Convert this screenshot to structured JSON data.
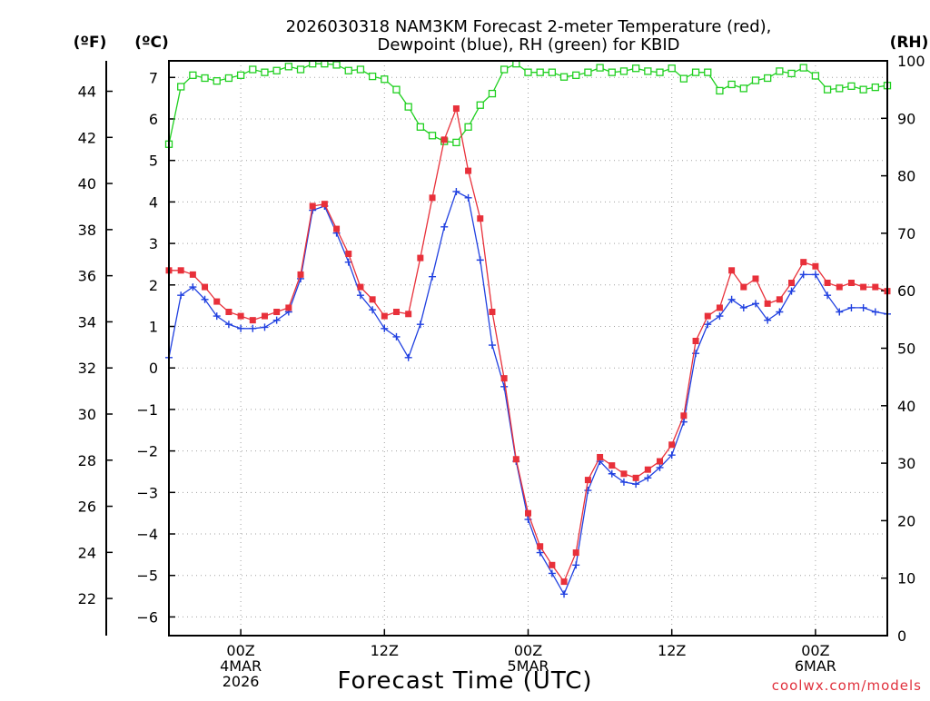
{
  "chart_data": {
    "type": "line",
    "title_lines": [
      "2026030318 NAM3KM Forecast 2-meter Temperature (red),",
      "Dewpoint (blue), RH (green) for KBID"
    ],
    "xlabel": "Forecast Time (UTC)",
    "credit": "coolwx.com/models",
    "left_unit_f": "(ºF)",
    "left_unit_c": "(ºC)",
    "right_unit": "(RH)",
    "x_range_hours": [
      0,
      60
    ],
    "c_range": [
      -6.45,
      7.4
    ],
    "rh_range": [
      0,
      100
    ],
    "c_ticks": [
      7,
      6,
      5,
      4,
      3,
      2,
      1,
      0,
      -1,
      -2,
      -3,
      -4,
      -5,
      -6
    ],
    "f_ticks": [
      44,
      42,
      40,
      38,
      36,
      34,
      32,
      30,
      28,
      26,
      24,
      22
    ],
    "rh_ticks": [
      100,
      90,
      80,
      70,
      60,
      50,
      40,
      30,
      20,
      10,
      0
    ],
    "x_ticks": [
      {
        "hour": 6,
        "lines": [
          "00Z",
          "4MAR",
          "2026"
        ]
      },
      {
        "hour": 18,
        "lines": [
          "12Z"
        ]
      },
      {
        "hour": 30,
        "lines": [
          "00Z",
          "5MAR"
        ]
      },
      {
        "hour": 42,
        "lines": [
          "12Z"
        ]
      },
      {
        "hour": 54,
        "lines": [
          "00Z",
          "6MAR"
        ]
      }
    ],
    "colors": {
      "temperature": "#e8303a",
      "dewpoint": "#2040e0",
      "rh": "#20d020"
    },
    "series": [
      {
        "name": "Temperature (C)",
        "color": "#e8303a",
        "marker": "square-filled",
        "values": [
          2.35,
          2.35,
          2.25,
          1.95,
          1.6,
          1.35,
          1.25,
          1.15,
          1.25,
          1.35,
          1.45,
          2.25,
          3.9,
          3.95,
          3.35,
          2.75,
          1.95,
          1.65,
          1.25,
          1.35,
          1.3,
          2.65,
          4.1,
          5.5,
          6.25,
          4.75,
          3.6,
          1.35,
          -0.25,
          -2.2,
          -3.5,
          -4.3,
          -4.75,
          -5.15,
          -4.45,
          -2.7,
          -2.15,
          -2.35,
          -2.55,
          -2.65,
          -2.45,
          -2.25,
          -1.85,
          -1.15,
          0.65,
          1.25,
          1.45,
          2.35,
          1.95,
          2.15,
          1.55,
          1.65,
          2.05,
          2.55,
          2.45,
          2.05,
          1.95,
          2.05,
          1.95,
          1.95,
          1.85
        ]
      },
      {
        "name": "Dewpoint (C)",
        "color": "#2040e0",
        "marker": "plus",
        "values": [
          0.25,
          1.75,
          1.95,
          1.65,
          1.25,
          1.05,
          0.95,
          0.95,
          0.98,
          1.15,
          1.35,
          2.15,
          3.8,
          3.9,
          3.25,
          2.55,
          1.75,
          1.4,
          0.95,
          0.75,
          0.25,
          1.05,
          2.2,
          3.4,
          4.25,
          4.1,
          2.6,
          0.55,
          -0.45,
          -2.25,
          -3.65,
          -4.45,
          -4.95,
          -5.45,
          -4.75,
          -2.95,
          -2.25,
          -2.55,
          -2.75,
          -2.8,
          -2.65,
          -2.4,
          -2.1,
          -1.3,
          0.35,
          1.05,
          1.25,
          1.65,
          1.45,
          1.55,
          1.15,
          1.35,
          1.85,
          2.25,
          2.25,
          1.75,
          1.35,
          1.45,
          1.45,
          1.35,
          1.3
        ]
      },
      {
        "name": "RH (%)",
        "color": "#20d020",
        "marker": "square-open",
        "values": [
          85.5,
          95.5,
          97.5,
          97,
          96.5,
          97,
          97.5,
          98.5,
          98,
          98.3,
          99,
          98.5,
          99.5,
          99.5,
          99.3,
          98.3,
          98.5,
          97.3,
          96.8,
          95,
          92,
          88.5,
          87,
          86,
          85.8,
          88.5,
          92.3,
          94.3,
          98.5,
          99.5,
          98,
          98,
          98,
          97.2,
          97.5,
          98,
          98.8,
          98,
          98.2,
          98.7,
          98.2,
          98,
          98.7,
          96.9,
          98,
          98,
          94.8,
          95.9,
          95.2,
          96.6,
          97,
          98.2,
          97.8,
          98.8,
          97.4,
          95,
          95.2,
          95.6,
          95,
          95.4,
          95.7
        ]
      }
    ]
  }
}
